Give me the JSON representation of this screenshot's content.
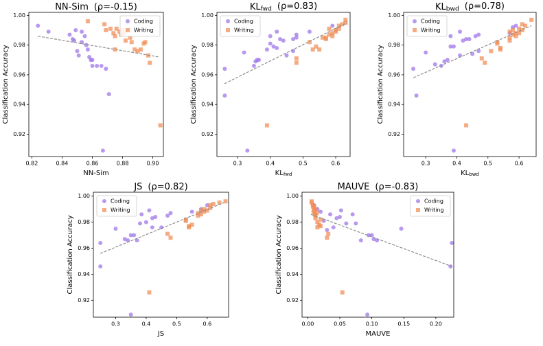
{
  "chart_data": [
    {
      "type": "scatter",
      "title": {
        "text": "NN-Sim",
        "rho": "(ρ=-0.15)"
      },
      "xlabel": {
        "text": "NN-Sim"
      },
      "ylabel": "Classification Accuracy",
      "xlim": [
        0.818,
        0.907
      ],
      "ylim": [
        0.905,
        1.002
      ],
      "xticks": [
        0.82,
        0.84,
        0.86,
        0.88,
        {
          "value": 0.9,
          "label": "0.90"
        }
      ],
      "yticks": [
        0.92,
        0.94,
        0.96,
        0.98,
        {
          "value": 1,
          "label": "1.00"
        }
      ],
      "legend": "upper right",
      "series": [
        {
          "name": "Coding",
          "color": "#9b72e8",
          "marker": "circle",
          "x": [
            0.824,
            0.831,
            0.845,
            0.847,
            0.848,
            0.849,
            0.85,
            0.851,
            0.853,
            0.855,
            0.856,
            0.857,
            0.858,
            0.859,
            0.86,
            0.86,
            0.863,
            0.866,
            0.869,
            0.871,
            0.867,
            0.853
          ],
          "y": [
            0.993,
            0.989,
            0.987,
            0.984,
            0.983,
            0.99,
            0.976,
            0.973,
            0.989,
            0.986,
            0.98,
            0.977,
            0.972,
            0.97,
            0.97,
            0.966,
            0.966,
            0.966,
            0.964,
            0.947,
            0.909,
            0.982
          ]
        },
        {
          "name": "Writing",
          "color": "#f08c55",
          "marker": "square",
          "x": [
            0.857,
            0.868,
            0.869,
            0.872,
            0.874,
            0.875,
            0.876,
            0.878,
            0.879,
            0.88,
            0.881,
            0.882,
            0.885,
            0.886,
            0.888,
            0.89,
            0.892,
            0.894,
            0.895,
            0.897,
            0.898,
            0.905,
            0.875
          ],
          "y": [
            0.996,
            0.994,
            0.99,
            0.991,
            0.988,
            0.986,
            0.991,
            0.989,
            0.987,
            0.99,
            0.988,
            0.983,
            0.985,
            0.982,
            0.977,
            0.976,
            0.977,
            0.981,
            0.982,
            0.973,
            0.968,
            0.926,
            0.977
          ]
        }
      ],
      "trend_line": {
        "x": [
          0.824,
          0.904
        ],
        "y": [
          0.986,
          0.972
        ]
      }
    },
    {
      "type": "scatter",
      "title": {
        "text": "KL",
        "sub": "fwd",
        "rho": "(ρ=0.83)"
      },
      "xlabel": {
        "text": "KL",
        "sub": "fwd"
      },
      "ylabel": "Classification Accuracy",
      "xlim": [
        0.237,
        0.644
      ],
      "ylim": [
        0.905,
        1.002
      ],
      "xticks": [
        0.3,
        0.4,
        0.5,
        0.6
      ],
      "yticks": [
        0.92,
        0.94,
        0.96,
        0.98,
        {
          "value": 1,
          "label": "1.00"
        }
      ],
      "legend": "upper left",
      "series": [
        {
          "name": "Coding",
          "color": "#9b72e8",
          "marker": "circle",
          "x": [
            0.261,
            0.261,
            0.32,
            0.33,
            0.35,
            0.355,
            0.36,
            0.365,
            0.39,
            0.4,
            0.4,
            0.41,
            0.42,
            0.42,
            0.43,
            0.44,
            0.45,
            0.47,
            0.47,
            0.48,
            0.48,
            0.52,
            0.59
          ],
          "y": [
            0.964,
            0.946,
            0.975,
            0.909,
            0.966,
            0.969,
            0.97,
            0.97,
            0.977,
            0.986,
            0.981,
            0.979,
            0.978,
            0.989,
            0.984,
            0.983,
            0.973,
            0.976,
            0.984,
            0.987,
            0.985,
            0.989,
            0.993
          ]
        },
        {
          "name": "Writing",
          "color": "#f08c55",
          "marker": "square",
          "x": [
            0.39,
            0.48,
            0.48,
            0.52,
            0.53,
            0.54,
            0.55,
            0.56,
            0.57,
            0.58,
            0.59,
            0.59,
            0.6,
            0.6,
            0.61,
            0.61,
            0.62,
            0.63,
            0.63,
            0.58,
            0.57
          ],
          "y": [
            0.926,
            0.971,
            0.968,
            0.982,
            0.977,
            0.979,
            0.977,
            0.985,
            0.984,
            0.991,
            0.988,
            0.986,
            0.99,
            0.989,
            0.991,
            0.993,
            0.994,
            0.995,
            0.997,
            0.987,
            0.985
          ]
        }
      ],
      "trend_line": {
        "x": [
          0.26,
          0.635
        ],
        "y": [
          0.954,
          0.995
        ]
      }
    },
    {
      "type": "scatter",
      "title": {
        "text": "KL",
        "sub": "bwd",
        "rho": "(ρ=0.78)"
      },
      "xlabel": {
        "text": "KL",
        "sub": "bwd"
      },
      "ylabel": "Classification Accuracy",
      "xlim": [
        0.229,
        0.655
      ],
      "ylim": [
        0.905,
        1.002
      ],
      "xticks": [
        0.3,
        0.4,
        0.5,
        0.6
      ],
      "yticks": [
        0.92,
        0.94,
        0.96,
        0.98,
        {
          "value": 1,
          "label": "1.00"
        }
      ],
      "legend": "upper left",
      "series": [
        {
          "name": "Coding",
          "color": "#9b72e8",
          "marker": "circle",
          "x": [
            0.26,
            0.27,
            0.3,
            0.33,
            0.35,
            0.36,
            0.37,
            0.38,
            0.38,
            0.39,
            0.39,
            0.41,
            0.41,
            0.42,
            0.43,
            0.44,
            0.45,
            0.46,
            0.47,
            0.47,
            0.57,
            0.58,
            0.59
          ],
          "y": [
            0.964,
            0.946,
            0.975,
            0.967,
            0.966,
            0.969,
            0.97,
            0.979,
            0.986,
            0.979,
            0.909,
            0.973,
            0.989,
            0.983,
            0.984,
            0.984,
            0.974,
            0.986,
            0.976,
            0.987,
            0.988,
            0.992,
            0.993
          ]
        },
        {
          "name": "Writing",
          "color": "#f08c55",
          "marker": "square",
          "x": [
            0.43,
            0.48,
            0.49,
            0.51,
            0.53,
            0.53,
            0.54,
            0.54,
            0.57,
            0.57,
            0.58,
            0.58,
            0.59,
            0.59,
            0.6,
            0.6,
            0.61,
            0.61,
            0.62,
            0.64,
            0.57
          ],
          "y": [
            0.926,
            0.971,
            0.968,
            0.976,
            0.981,
            0.982,
            0.977,
            0.978,
            0.985,
            0.989,
            0.99,
            0.987,
            0.986,
            0.988,
            0.991,
            0.988,
            0.994,
            0.99,
            0.993,
            0.997,
            0.983
          ]
        }
      ],
      "trend_line": {
        "x": [
          0.26,
          0.64
        ],
        "y": [
          0.958,
          0.993
        ]
      }
    },
    {
      "type": "scatter",
      "title": {
        "text": "JS",
        "rho": "(ρ=0.82)"
      },
      "xlabel": {
        "text": "JS"
      },
      "ylabel": "Classification Accuracy",
      "xlim": [
        0.227,
        0.67
      ],
      "ylim": [
        0.907,
        1.003
      ],
      "xticks": [
        0.3,
        0.4,
        0.5,
        0.6
      ],
      "yticks": [
        0.92,
        0.94,
        0.96,
        0.98,
        {
          "value": 1,
          "label": "1.00"
        }
      ],
      "legend": "upper left",
      "series": [
        {
          "name": "Coding",
          "color": "#9b72e8",
          "marker": "circle",
          "x": [
            0.25,
            0.25,
            0.3,
            0.33,
            0.34,
            0.35,
            0.36,
            0.37,
            0.38,
            0.385,
            0.35,
            0.4,
            0.41,
            0.42,
            0.43,
            0.42,
            0.45,
            0.47,
            0.48,
            0.55,
            0.58,
            0.6
          ],
          "y": [
            0.964,
            0.946,
            0.975,
            0.967,
            0.966,
            0.97,
            0.97,
            0.966,
            0.979,
            0.986,
            0.909,
            0.98,
            0.989,
            0.983,
            0.984,
            0.976,
            0.976,
            0.985,
            0.987,
            0.988,
            0.99,
            0.993
          ]
        },
        {
          "name": "Writing",
          "color": "#f08c55",
          "marker": "square",
          "x": [
            0.41,
            0.47,
            0.48,
            0.53,
            0.54,
            0.54,
            0.55,
            0.57,
            0.58,
            0.58,
            0.59,
            0.59,
            0.6,
            0.61,
            0.61,
            0.62,
            0.64,
            0.66,
            0.53,
            0.57
          ],
          "y": [
            0.926,
            0.971,
            0.968,
            0.982,
            0.977,
            0.976,
            0.978,
            0.985,
            0.989,
            0.986,
            0.988,
            0.99,
            0.989,
            0.991,
            0.993,
            0.994,
            0.995,
            0.996,
            0.981,
            0.987
          ]
        }
      ],
      "trend_line": {
        "x": [
          0.25,
          0.655
        ],
        "y": [
          0.956,
          0.995
        ]
      }
    },
    {
      "type": "scatter",
      "title": {
        "text": "MAUVE",
        "rho": "(ρ=-0.83)"
      },
      "xlabel": {
        "text": "MAUVE"
      },
      "ylabel": "Classification Accuracy",
      "xlim": [
        -0.009,
        0.228
      ],
      "ylim": [
        0.907,
        1.003
      ],
      "xticks": [
        {
          "value": 0,
          "label": "0.00"
        },
        0.05,
        {
          "value": 0.1,
          "label": "0.10"
        },
        0.15,
        {
          "value": 0.2,
          "label": "0.20"
        }
      ],
      "yticks": [
        0.92,
        0.94,
        0.96,
        0.98,
        {
          "value": 1,
          "label": "1.00"
        }
      ],
      "legend": "upper right",
      "series": [
        {
          "name": "Coding",
          "color": "#9b72e8",
          "marker": "circle",
          "x": [
            0.225,
            0.223,
            0.146,
            0.108,
            0.103,
            0.095,
            0.1,
            0.083,
            0.075,
            0.06,
            0.052,
            0.05,
            0.045,
            0.04,
            0.07,
            0.093,
            0.035,
            0.025,
            0.03,
            0.02,
            0.015,
            0.01
          ],
          "y": [
            0.964,
            0.946,
            0.975,
            0.966,
            0.967,
            0.97,
            0.97,
            0.966,
            0.979,
            0.979,
            0.989,
            0.984,
            0.983,
            0.976,
            0.986,
            0.909,
            0.986,
            0.981,
            0.974,
            0.988,
            0.99,
            0.993
          ]
        },
        {
          "name": "Writing",
          "color": "#f08c55",
          "marker": "square",
          "x": [
            0.054,
            0.03,
            0.032,
            0.02,
            0.015,
            0.02,
            0.018,
            0.012,
            0.01,
            0.011,
            0.012,
            0.008,
            0.009,
            0.006,
            0.008,
            0.01,
            0.012,
            0.015,
            0.006,
            0.014
          ],
          "y": [
            0.926,
            0.968,
            0.971,
            0.977,
            0.976,
            0.982,
            0.978,
            0.985,
            0.989,
            0.986,
            0.99,
            0.992,
            0.988,
            0.995,
            0.993,
            0.991,
            0.983,
            0.98,
            0.996,
            0.987
          ]
        }
      ],
      "trend_line": {
        "x": [
          0.005,
          0.225
        ],
        "y": [
          0.986,
          0.946
        ]
      }
    }
  ]
}
